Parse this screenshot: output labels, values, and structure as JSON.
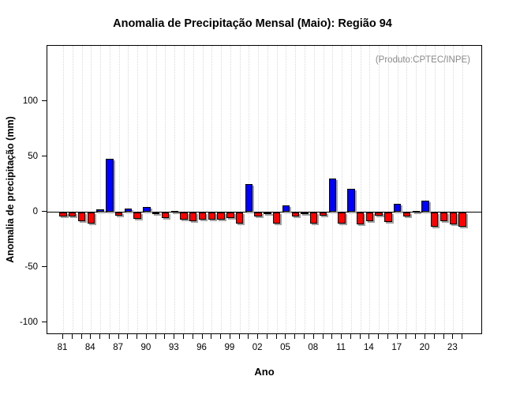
{
  "title": "Anomalia de Precipitação Mensal (Maio): Região 94",
  "annotation": "(Produto:CPTEC/INPE)",
  "chart_data": {
    "type": "bar",
    "title": "Anomalia de Precipitação Mensal (Maio): Região 94",
    "xlabel": "Ano",
    "ylabel": "Anomalia de precipitação (mm)",
    "ylim": [
      -112,
      150
    ],
    "yticks": [
      100,
      50,
      0,
      -50,
      -100
    ],
    "ytick_labels": [
      "100",
      "50",
      "0",
      "-50",
      "-100"
    ],
    "xtick_labels": [
      "81",
      "84",
      "87",
      "90",
      "93",
      "96",
      "99",
      "02",
      "05",
      "08",
      "11",
      "14",
      "17",
      "20",
      "23"
    ],
    "xtick_label_step": 3,
    "grid": "vertical-dotted",
    "legend": "none",
    "positive_color": "#0000ff",
    "negative_color": "#ff0000",
    "shadow_color": "#a3a3a3",
    "years": [
      1981,
      1982,
      1983,
      1984,
      1985,
      1986,
      1987,
      1988,
      1989,
      1990,
      1991,
      1992,
      1993,
      1994,
      1995,
      1996,
      1997,
      1998,
      1999,
      2000,
      2001,
      2002,
      2003,
      2004,
      2005,
      2006,
      2007,
      2008,
      2009,
      2010,
      2011,
      2012,
      2013,
      2014,
      2015,
      2016,
      2017,
      2018,
      2019,
      2020,
      2021,
      2022,
      2023,
      2024
    ],
    "values": [
      -4,
      -4,
      -8,
      -10,
      2,
      48,
      -3,
      3,
      -6,
      4,
      -2,
      -5,
      1,
      -7,
      -8,
      -7,
      -7,
      -7,
      -5,
      -10,
      25,
      -4,
      -2,
      -10,
      6,
      -4,
      -2,
      -10,
      -3,
      30,
      -10,
      21,
      -11,
      -8,
      -3,
      -9,
      7,
      -4,
      0.5,
      10,
      -13,
      -8,
      -11,
      -13
    ]
  }
}
